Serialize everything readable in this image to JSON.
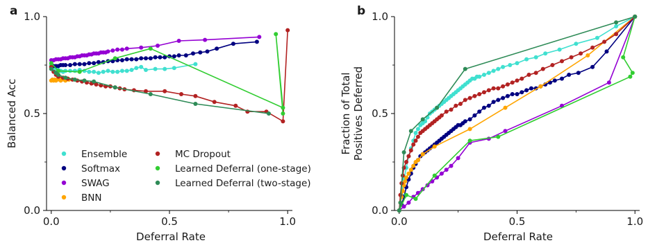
{
  "panels": [
    {
      "letter": "a",
      "xlabel": "Deferral Rate",
      "ylabel": [
        "Balanced Acc"
      ],
      "xlim": [
        -0.02,
        1.02
      ],
      "ylim": [
        0.0,
        1.0
      ],
      "xticks": [
        {
          "v": 0.0,
          "label": "0.0"
        },
        {
          "v": 0.5,
          "label": "0.5"
        },
        {
          "v": 1.0,
          "label": "1.0"
        }
      ],
      "yticks": [
        {
          "v": 0.0,
          "label": "0.0"
        },
        {
          "v": 0.5,
          "label": "0.5"
        },
        {
          "v": 1.0,
          "label": "1.0"
        }
      ],
      "minor_xticks": [
        0.25,
        0.75
      ],
      "minor_yticks": [
        0.25,
        0.75
      ]
    },
    {
      "letter": "b",
      "xlabel": "Deferral Rate",
      "ylabel": [
        "Fraction of Total",
        "Positives Deferred"
      ],
      "xlim": [
        -0.02,
        1.02
      ],
      "ylim": [
        0.0,
        1.0
      ],
      "xticks": [
        {
          "v": 0.0,
          "label": "0.0"
        },
        {
          "v": 0.5,
          "label": "0.5"
        },
        {
          "v": 1.0,
          "label": "1.0"
        }
      ],
      "yticks": [
        {
          "v": 0.0,
          "label": "0.0"
        },
        {
          "v": 0.5,
          "label": "0.5"
        },
        {
          "v": 1.0,
          "label": "1.0"
        }
      ],
      "minor_xticks": [
        0.25,
        0.75
      ],
      "minor_yticks": [
        0.25,
        0.75
      ]
    }
  ],
  "legend": {
    "placement": "lower-left of panel a",
    "items": [
      {
        "label": "Ensemble",
        "color": "#40e0d0"
      },
      {
        "label": "Softmax",
        "color": "#000080"
      },
      {
        "label": "SWAG",
        "color": "#9400d3"
      },
      {
        "label": "BNN",
        "color": "#ffa500"
      },
      {
        "label": "MC Dropout",
        "color": "#b22222"
      },
      {
        "label": "Learned Deferral (one-stage)",
        "color": "#32cd32"
      },
      {
        "label": "Learned Deferral (two-stage)",
        "color": "#2e8b57"
      }
    ]
  },
  "chart_data": [
    {
      "type": "line",
      "panel": "a",
      "title": "",
      "xlabel": "Deferral Rate",
      "ylabel": "Balanced Acc",
      "xlim": [
        -0.02,
        1.02
      ],
      "ylim": [
        0.0,
        1.0
      ],
      "series": [
        {
          "name": "Ensemble",
          "color": "#40e0d0",
          "markers": true,
          "x": [
            0.0,
            0.01,
            0.02,
            0.03,
            0.04,
            0.05,
            0.06,
            0.08,
            0.1,
            0.12,
            0.14,
            0.16,
            0.18,
            0.2,
            0.22,
            0.24,
            0.26,
            0.28,
            0.3,
            0.32,
            0.34,
            0.36,
            0.38,
            0.4,
            0.44,
            0.48,
            0.52,
            0.61
          ],
          "y": [
            0.75,
            0.735,
            0.73,
            0.725,
            0.72,
            0.715,
            0.72,
            0.72,
            0.72,
            0.725,
            0.72,
            0.715,
            0.715,
            0.71,
            0.715,
            0.72,
            0.715,
            0.715,
            0.72,
            0.72,
            0.725,
            0.735,
            0.74,
            0.725,
            0.73,
            0.73,
            0.735,
            0.755
          ]
        },
        {
          "name": "Softmax",
          "color": "#000080",
          "markers": true,
          "x": [
            0.0,
            0.01,
            0.02,
            0.03,
            0.04,
            0.05,
            0.06,
            0.08,
            0.1,
            0.12,
            0.14,
            0.16,
            0.18,
            0.2,
            0.22,
            0.24,
            0.26,
            0.28,
            0.3,
            0.32,
            0.34,
            0.36,
            0.38,
            0.4,
            0.42,
            0.44,
            0.46,
            0.48,
            0.5,
            0.52,
            0.54,
            0.57,
            0.6,
            0.63,
            0.66,
            0.7,
            0.77,
            0.87
          ],
          "y": [
            0.74,
            0.745,
            0.745,
            0.745,
            0.75,
            0.75,
            0.75,
            0.75,
            0.755,
            0.755,
            0.755,
            0.76,
            0.76,
            0.765,
            0.765,
            0.77,
            0.77,
            0.775,
            0.775,
            0.78,
            0.78,
            0.78,
            0.785,
            0.785,
            0.785,
            0.79,
            0.79,
            0.79,
            0.795,
            0.795,
            0.8,
            0.8,
            0.81,
            0.815,
            0.82,
            0.835,
            0.86,
            0.87
          ]
        },
        {
          "name": "SWAG",
          "color": "#9400d3",
          "markers": true,
          "x": [
            0.0,
            0.01,
            0.02,
            0.03,
            0.04,
            0.05,
            0.06,
            0.07,
            0.08,
            0.09,
            0.1,
            0.11,
            0.12,
            0.13,
            0.14,
            0.15,
            0.16,
            0.17,
            0.18,
            0.19,
            0.2,
            0.21,
            0.22,
            0.23,
            0.24,
            0.26,
            0.28,
            0.3,
            0.32,
            0.38,
            0.45,
            0.54,
            0.65,
            0.88
          ],
          "y": [
            0.775,
            0.775,
            0.78,
            0.78,
            0.78,
            0.785,
            0.785,
            0.785,
            0.79,
            0.79,
            0.79,
            0.795,
            0.795,
            0.8,
            0.8,
            0.8,
            0.805,
            0.805,
            0.81,
            0.81,
            0.81,
            0.815,
            0.815,
            0.815,
            0.82,
            0.825,
            0.83,
            0.83,
            0.835,
            0.84,
            0.85,
            0.875,
            0.88,
            0.895
          ]
        },
        {
          "name": "BNN",
          "color": "#ffa500",
          "markers": true,
          "x": [
            0.0,
            0.005,
            0.01,
            0.015,
            0.02,
            0.025,
            0.03,
            0.035,
            0.04,
            0.045,
            0.05,
            0.055,
            0.06,
            0.065,
            0.07,
            0.075
          ],
          "y": [
            0.67,
            0.675,
            0.67,
            0.675,
            0.67,
            0.675,
            0.68,
            0.675,
            0.67,
            0.675,
            0.68,
            0.675,
            0.67,
            0.675,
            0.68,
            0.675
          ]
        },
        {
          "name": "MC Dropout",
          "color": "#b22222",
          "markers": true,
          "x": [
            0.0,
            0.01,
            0.02,
            0.03,
            0.05,
            0.07,
            0.09,
            0.11,
            0.13,
            0.15,
            0.17,
            0.19,
            0.21,
            0.23,
            0.25,
            0.27,
            0.29,
            0.31,
            0.35,
            0.4,
            0.48,
            0.55,
            0.61,
            0.69,
            0.78,
            0.83,
            0.91,
            0.98,
            1.0
          ],
          "y": [
            0.74,
            0.715,
            0.7,
            0.69,
            0.685,
            0.68,
            0.675,
            0.67,
            0.665,
            0.66,
            0.655,
            0.65,
            0.645,
            0.64,
            0.64,
            0.635,
            0.63,
            0.625,
            0.62,
            0.615,
            0.615,
            0.6,
            0.59,
            0.56,
            0.54,
            0.51,
            0.51,
            0.46,
            0.93
          ]
        },
        {
          "name": "Learned Deferral (one-stage)",
          "color": "#32cd32",
          "markers": true,
          "x": [
            0.0,
            0.03,
            0.12,
            0.27,
            0.42,
            0.98,
            0.95,
            0.98
          ],
          "y": [
            0.76,
            0.72,
            0.715,
            0.785,
            0.835,
            0.53,
            0.91,
            0.5
          ]
        },
        {
          "name": "Learned Deferral (two-stage)",
          "color": "#2e8b57",
          "markers": true,
          "x": [
            0.0,
            0.02,
            0.03,
            0.06,
            0.1,
            0.14,
            0.18,
            0.27,
            0.42,
            0.61,
            0.92
          ],
          "y": [
            0.73,
            0.71,
            0.7,
            0.685,
            0.675,
            0.67,
            0.665,
            0.635,
            0.6,
            0.55,
            0.5
          ]
        }
      ]
    },
    {
      "type": "line",
      "panel": "b",
      "title": "",
      "xlabel": "Deferral Rate",
      "ylabel": "Fraction of Total Positives Deferred",
      "xlim": [
        -0.02,
        1.02
      ],
      "ylim": [
        0.0,
        1.0
      ],
      "series": [
        {
          "name": "Ensemble",
          "color": "#40e0d0",
          "markers": true,
          "x": [
            0.0,
            0.01,
            0.02,
            0.03,
            0.04,
            0.05,
            0.06,
            0.07,
            0.08,
            0.09,
            0.1,
            0.11,
            0.12,
            0.13,
            0.14,
            0.15,
            0.16,
            0.17,
            0.18,
            0.19,
            0.2,
            0.21,
            0.22,
            0.23,
            0.24,
            0.25,
            0.26,
            0.27,
            0.28,
            0.29,
            0.3,
            0.31,
            0.32,
            0.33,
            0.34,
            0.36,
            0.38,
            0.4,
            0.42,
            0.44,
            0.47,
            0.5,
            0.54,
            0.58,
            0.62,
            0.68,
            0.75,
            0.84,
            0.92,
            1.0
          ],
          "y": [
            0.0,
            0.08,
            0.16,
            0.22,
            0.28,
            0.32,
            0.36,
            0.4,
            0.42,
            0.44,
            0.45,
            0.46,
            0.48,
            0.5,
            0.51,
            0.52,
            0.53,
            0.54,
            0.55,
            0.56,
            0.57,
            0.58,
            0.59,
            0.6,
            0.61,
            0.62,
            0.63,
            0.64,
            0.65,
            0.66,
            0.67,
            0.68,
            0.68,
            0.69,
            0.69,
            0.7,
            0.71,
            0.72,
            0.73,
            0.74,
            0.75,
            0.76,
            0.78,
            0.79,
            0.81,
            0.83,
            0.86,
            0.89,
            0.95,
            1.0
          ]
        },
        {
          "name": "Softmax",
          "color": "#000080",
          "markers": true,
          "x": [
            0.0,
            0.01,
            0.02,
            0.03,
            0.04,
            0.05,
            0.06,
            0.07,
            0.08,
            0.09,
            0.1,
            0.11,
            0.12,
            0.13,
            0.14,
            0.15,
            0.16,
            0.17,
            0.18,
            0.19,
            0.2,
            0.21,
            0.22,
            0.23,
            0.24,
            0.25,
            0.26,
            0.27,
            0.28,
            0.3,
            0.32,
            0.34,
            0.36,
            0.38,
            0.4,
            0.42,
            0.44,
            0.46,
            0.48,
            0.5,
            0.52,
            0.54,
            0.56,
            0.58,
            0.6,
            0.62,
            0.64,
            0.66,
            0.69,
            0.72,
            0.76,
            0.82,
            0.88,
            1.0
          ],
          "y": [
            0.0,
            0.03,
            0.07,
            0.12,
            0.16,
            0.19,
            0.22,
            0.24,
            0.26,
            0.28,
            0.29,
            0.3,
            0.31,
            0.32,
            0.33,
            0.34,
            0.35,
            0.36,
            0.37,
            0.38,
            0.39,
            0.4,
            0.41,
            0.42,
            0.43,
            0.44,
            0.44,
            0.45,
            0.46,
            0.47,
            0.49,
            0.51,
            0.53,
            0.54,
            0.56,
            0.57,
            0.58,
            0.59,
            0.6,
            0.6,
            0.61,
            0.62,
            0.63,
            0.63,
            0.64,
            0.65,
            0.66,
            0.67,
            0.68,
            0.7,
            0.71,
            0.74,
            0.82,
            1.0
          ]
        },
        {
          "name": "SWAG",
          "color": "#9400d3",
          "markers": true,
          "x": [
            0.0,
            0.02,
            0.04,
            0.06,
            0.08,
            0.1,
            0.12,
            0.14,
            0.16,
            0.18,
            0.2,
            0.22,
            0.25,
            0.3,
            0.38,
            0.45,
            0.69,
            0.89,
            1.0
          ],
          "y": [
            0.0,
            0.02,
            0.04,
            0.07,
            0.09,
            0.11,
            0.13,
            0.15,
            0.17,
            0.19,
            0.21,
            0.23,
            0.27,
            0.35,
            0.37,
            0.41,
            0.54,
            0.66,
            1.0
          ]
        },
        {
          "name": "BNN",
          "color": "#ffa500",
          "markers": true,
          "x": [
            0.0,
            0.005,
            0.01,
            0.015,
            0.02,
            0.025,
            0.03,
            0.04,
            0.05,
            0.06,
            0.07,
            0.08,
            0.1,
            0.15,
            0.3,
            0.45,
            0.6,
            0.8,
            1.0
          ],
          "y": [
            0.0,
            0.04,
            0.07,
            0.1,
            0.13,
            0.15,
            0.17,
            0.19,
            0.21,
            0.23,
            0.25,
            0.26,
            0.29,
            0.33,
            0.42,
            0.53,
            0.64,
            0.8,
            1.0
          ]
        },
        {
          "name": "MC Dropout",
          "color": "#b22222",
          "markers": true,
          "x": [
            0.0,
            0.005,
            0.01,
            0.015,
            0.02,
            0.03,
            0.04,
            0.05,
            0.06,
            0.07,
            0.08,
            0.09,
            0.1,
            0.11,
            0.12,
            0.13,
            0.14,
            0.15,
            0.16,
            0.17,
            0.18,
            0.2,
            0.22,
            0.24,
            0.26,
            0.28,
            0.3,
            0.32,
            0.34,
            0.36,
            0.38,
            0.4,
            0.42,
            0.44,
            0.46,
            0.48,
            0.5,
            0.52,
            0.55,
            0.58,
            0.61,
            0.65,
            0.69,
            0.73,
            0.77,
            0.82,
            0.87,
            0.92,
            1.0
          ],
          "y": [
            0.0,
            0.08,
            0.14,
            0.18,
            0.22,
            0.25,
            0.28,
            0.31,
            0.34,
            0.36,
            0.38,
            0.4,
            0.41,
            0.42,
            0.43,
            0.44,
            0.45,
            0.46,
            0.47,
            0.48,
            0.49,
            0.51,
            0.52,
            0.54,
            0.55,
            0.57,
            0.58,
            0.59,
            0.6,
            0.61,
            0.62,
            0.63,
            0.63,
            0.64,
            0.65,
            0.66,
            0.67,
            0.68,
            0.7,
            0.71,
            0.73,
            0.75,
            0.77,
            0.79,
            0.81,
            0.84,
            0.87,
            0.91,
            1.0
          ]
        },
        {
          "name": "Learned Deferral (one-stage)",
          "color": "#32cd32",
          "markers": true,
          "x": [
            0.0,
            0.03,
            0.07,
            0.15,
            0.3,
            0.42,
            0.98,
            0.99,
            0.95,
            1.0
          ],
          "y": [
            0.0,
            0.08,
            0.06,
            0.18,
            0.36,
            0.38,
            0.69,
            0.71,
            0.79,
            1.0
          ]
        },
        {
          "name": "Learned Deferral (two-stage)",
          "color": "#2e8b57",
          "markers": true,
          "x": [
            0.0,
            0.005,
            0.02,
            0.05,
            0.1,
            0.16,
            0.28,
            0.92,
            1.0
          ],
          "y": [
            0.0,
            0.04,
            0.3,
            0.41,
            0.47,
            0.53,
            0.73,
            0.97,
            1.0
          ]
        }
      ]
    }
  ]
}
